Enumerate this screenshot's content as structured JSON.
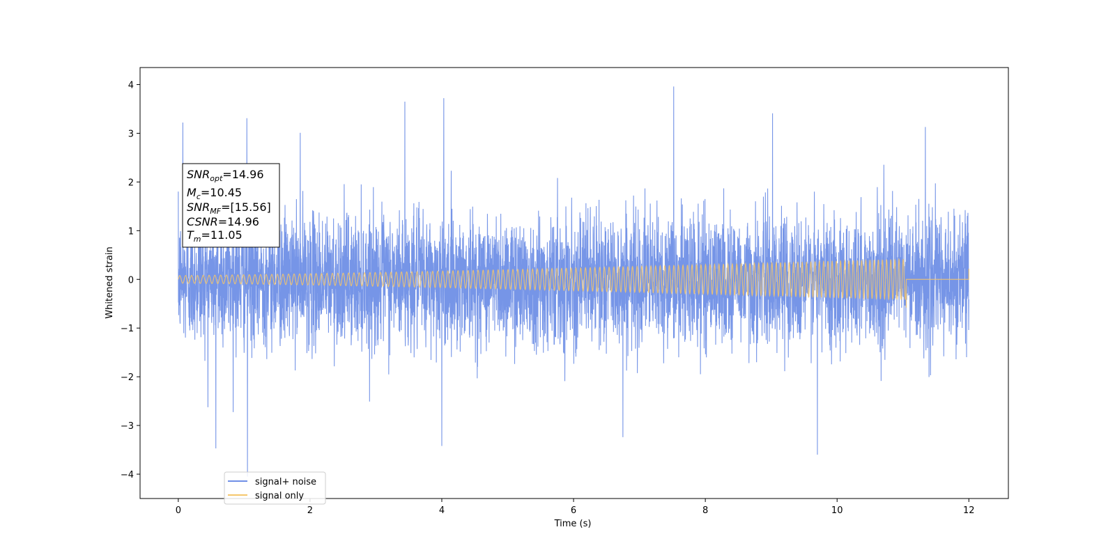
{
  "chart_data": {
    "type": "line",
    "xlabel": "Time (s)",
    "ylabel": "Whitened strain",
    "xlim": [
      -0.58,
      12.6
    ],
    "ylim": [
      -4.5,
      4.35
    ],
    "xticks": [
      0,
      2,
      4,
      6,
      8,
      10,
      12
    ],
    "yticks": [
      -4,
      -3,
      -2,
      -1,
      0,
      1,
      2,
      3,
      4
    ],
    "grid": false,
    "legend_position": "lower-left",
    "series": [
      {
        "name": "signal+ noise",
        "color": "#6f8fe6",
        "x_range": [
          0,
          12
        ],
        "std_approx": 0.65,
        "notable_peaks": [
          {
            "x": 0.07,
            "y": 3.22
          },
          {
            "x": 1.04,
            "y": 3.31
          },
          {
            "x": 1.85,
            "y": 3.01
          },
          {
            "x": 3.44,
            "y": 3.65
          },
          {
            "x": 4.03,
            "y": 3.72
          },
          {
            "x": 7.52,
            "y": 3.96
          },
          {
            "x": 9.02,
            "y": 3.41
          },
          {
            "x": 11.34,
            "y": 3.13
          },
          {
            "x": 0.57,
            "y": -3.47
          },
          {
            "x": 1.05,
            "y": -4.05
          },
          {
            "x": 4.0,
            "y": -3.42
          },
          {
            "x": 9.7,
            "y": -3.6
          },
          {
            "x": 6.75,
            "y": -3.24
          }
        ]
      },
      {
        "name": "signal only",
        "color": "#f5c66b",
        "x_range": [
          0,
          12
        ],
        "chirp_end": 11.05,
        "amplitude_start": 0.08,
        "amplitude_end": 0.42,
        "cycles": 150,
        "flat_after_merger": 0.0,
        "final_value": 0.22
      }
    ],
    "annotation": {
      "lines": [
        {
          "sym": "SNR",
          "sub": "opt",
          "value": "=14.96"
        },
        {
          "sym": "M",
          "sub": "c",
          "value": "=10.45"
        },
        {
          "sym": "SNR",
          "sub": "MF",
          "value": "=[15.56]"
        },
        {
          "sym": "CSNR",
          "sub": "",
          "value": "=14.96"
        },
        {
          "sym": "T",
          "sub": "m",
          "value": "=11.05"
        }
      ]
    }
  }
}
